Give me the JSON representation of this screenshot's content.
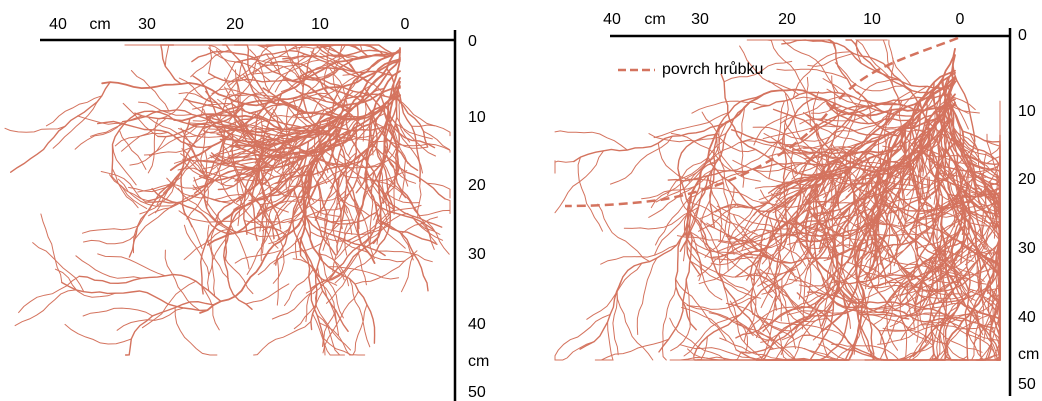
{
  "panels": [
    {
      "top_axis": {
        "labels": [
          "40",
          "cm",
          "30",
          "20",
          "10",
          "0"
        ]
      },
      "side_axis": {
        "labels": [
          "0",
          "10",
          "20",
          "30",
          "40",
          "cm",
          "50"
        ]
      }
    },
    {
      "top_axis": {
        "labels": [
          "40",
          "cm",
          "30",
          "20",
          "10",
          "0"
        ]
      },
      "side_axis": {
        "labels": [
          "0",
          "10",
          "20",
          "30",
          "40",
          "cm",
          "50"
        ]
      },
      "legend": {
        "label": "povrch hrůbku"
      }
    }
  ]
}
